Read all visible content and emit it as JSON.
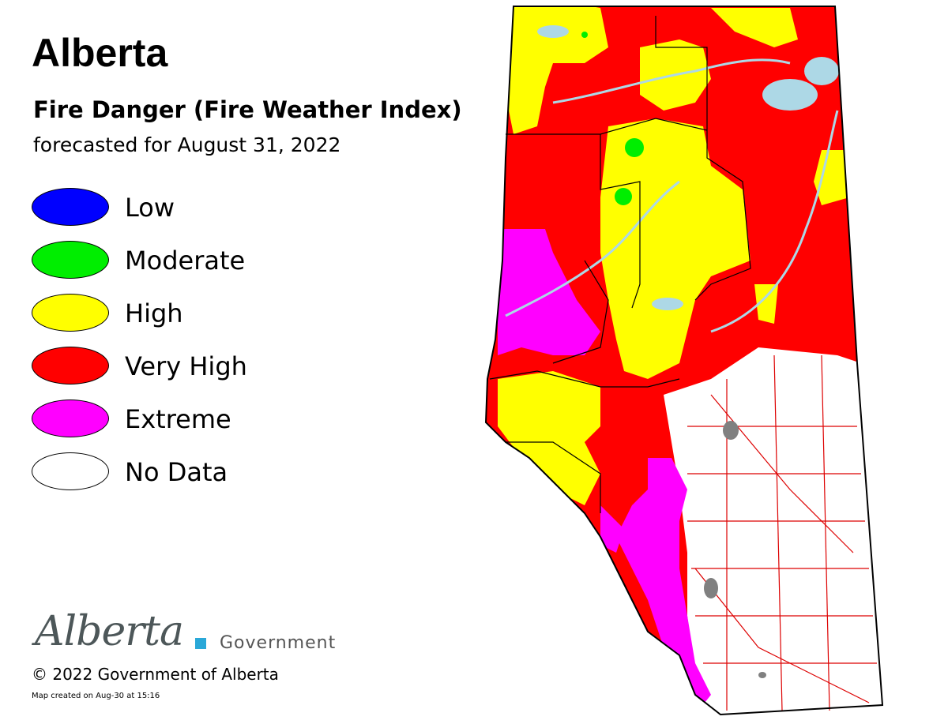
{
  "title": "Alberta",
  "subtitle": "Fire Danger (Fire Weather Index)",
  "forecast": "forecasted for August 31, 2022",
  "legend": {
    "items": [
      {
        "label": "Low",
        "color": "#0000ff"
      },
      {
        "label": "Moderate",
        "color": "#00ee00"
      },
      {
        "label": "High",
        "color": "#ffff00"
      },
      {
        "label": "Very High",
        "color": "#ff0000"
      },
      {
        "label": "Extreme",
        "color": "#ff00ff"
      },
      {
        "label": "No Data",
        "color": "#ffffff"
      }
    ]
  },
  "map_colors": {
    "water": "#add8e6",
    "roads": "#dd0000",
    "urban": "#808080",
    "boundary": "#000000"
  },
  "logo": {
    "wordmark": "Alberta",
    "government": "Government",
    "accent_color": "#2aa8d8"
  },
  "copyright": "© 2022 Government of Alberta",
  "created": "Map created on Aug-30 at 15:16"
}
